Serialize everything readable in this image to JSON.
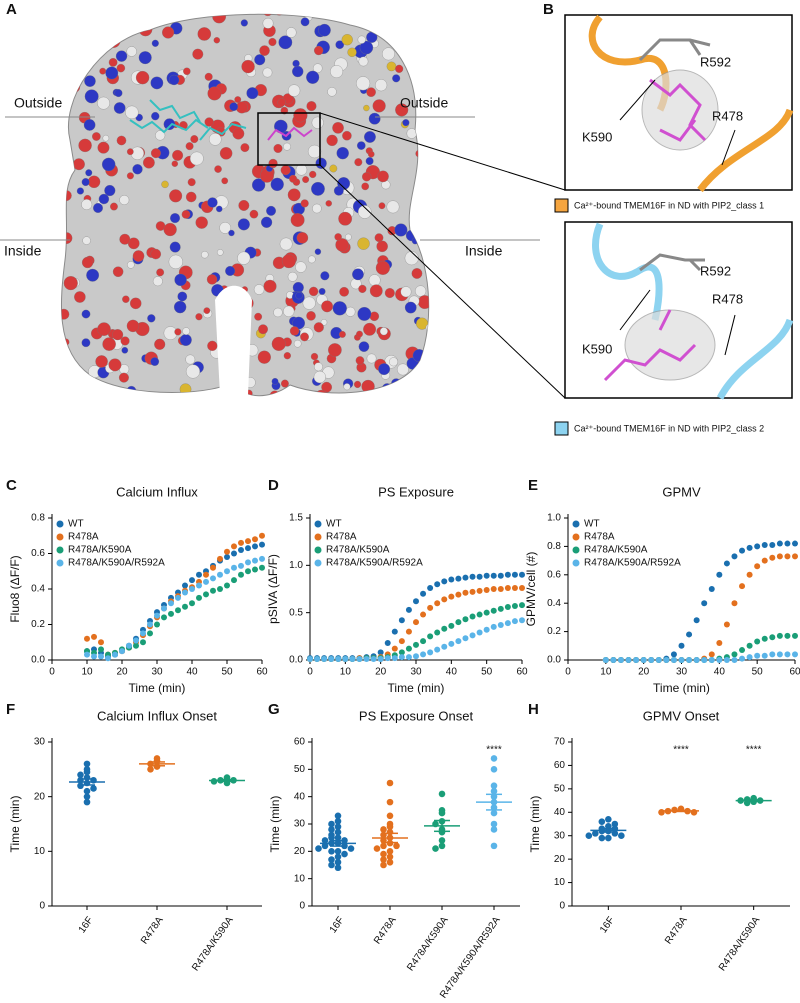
{
  "panel_labels": [
    "A",
    "B",
    "C",
    "D",
    "E",
    "F",
    "G",
    "H"
  ],
  "structure": {
    "outside_labels": [
      "Outside",
      "Outside"
    ],
    "inside_labels": [
      "Inside",
      "Inside"
    ]
  },
  "insets": [
    {
      "residues": [
        "R592",
        "K590",
        "R478"
      ],
      "caption": "Ca²⁺-bound TMEM16F in ND with PIP2_class 1"
    },
    {
      "residues": [
        "R592",
        "K590",
        "R478"
      ],
      "caption": "Ca²⁺-bound TMEM16F in ND with PIP2_class 2"
    }
  ],
  "chart_data": [
    {
      "type": "line",
      "title": "Calcium Influx",
      "xlabel": "Time (min)",
      "ylabel": "Fluo8 (ΔF/F)",
      "xlim": [
        0,
        60
      ],
      "xticks": [
        0,
        10,
        20,
        30,
        40,
        50,
        60
      ],
      "ylim": [
        0,
        0.8
      ],
      "yticks": [
        {
          "value": 0,
          "label": "0.0"
        },
        0.2,
        0.4,
        0.6,
        0.8
      ],
      "legend": "upper left",
      "x": [
        10,
        12,
        14,
        16,
        18,
        20,
        22,
        24,
        26,
        28,
        30,
        32,
        34,
        36,
        38,
        40,
        42,
        44,
        46,
        48,
        50,
        52,
        54,
        56,
        58,
        60
      ],
      "series": [
        {
          "name": "WT",
          "color": "#1a6faf",
          "values": [
            0.05,
            0.06,
            0.04,
            0.02,
            0.03,
            0.05,
            0.08,
            0.12,
            0.17,
            0.22,
            0.27,
            0.31,
            0.35,
            0.38,
            0.42,
            0.45,
            0.48,
            0.5,
            0.53,
            0.56,
            0.58,
            0.6,
            0.62,
            0.63,
            0.64,
            0.65
          ]
        },
        {
          "name": "R478A",
          "color": "#e3701e",
          "values": [
            0.12,
            0.13,
            0.1,
            0.03,
            0.04,
            0.05,
            0.07,
            0.1,
            0.14,
            0.19,
            0.24,
            0.29,
            0.33,
            0.36,
            0.39,
            0.41,
            0.44,
            0.48,
            0.52,
            0.57,
            0.61,
            0.64,
            0.66,
            0.67,
            0.68,
            0.7
          ]
        },
        {
          "name": "R478A/K590A",
          "color": "#1a9e77",
          "values": [
            0.05,
            0.04,
            0.06,
            0.03,
            0.04,
            0.06,
            0.07,
            0.08,
            0.1,
            0.15,
            0.2,
            0.24,
            0.26,
            0.28,
            0.3,
            0.32,
            0.35,
            0.37,
            0.39,
            0.4,
            0.42,
            0.45,
            0.48,
            0.5,
            0.51,
            0.52
          ]
        },
        {
          "name": "R478A/K590A/R592A",
          "color": "#5ab4e8",
          "values": [
            0.03,
            0.02,
            0.02,
            0.01,
            0.03,
            0.05,
            0.08,
            0.11,
            0.15,
            0.2,
            0.25,
            0.29,
            0.32,
            0.35,
            0.38,
            0.4,
            0.42,
            0.44,
            0.46,
            0.48,
            0.5,
            0.52,
            0.53,
            0.55,
            0.56,
            0.57
          ]
        }
      ]
    },
    {
      "type": "line",
      "title": "PS Exposure",
      "xlabel": "Time (min)",
      "ylabel": "pSIVA (ΔF/F)",
      "xlim": [
        0,
        60
      ],
      "xticks": [
        0,
        10,
        20,
        30,
        40,
        50,
        60
      ],
      "ylim": [
        0,
        1.5
      ],
      "yticks": [
        {
          "value": 0,
          "label": "0.0"
        },
        0.5,
        {
          "value": 1,
          "label": "1.0"
        },
        1.5
      ],
      "legend": "upper left",
      "x": [
        0,
        2,
        4,
        6,
        8,
        10,
        12,
        14,
        16,
        18,
        20,
        22,
        24,
        26,
        28,
        30,
        32,
        34,
        36,
        38,
        40,
        42,
        44,
        46,
        48,
        50,
        52,
        54,
        56,
        58,
        60
      ],
      "series": [
        {
          "name": "WT",
          "color": "#1a6faf",
          "values": [
            0.02,
            0.02,
            0.02,
            0.02,
            0.02,
            0.02,
            0.02,
            0.02,
            0.03,
            0.04,
            0.08,
            0.18,
            0.3,
            0.42,
            0.53,
            0.62,
            0.7,
            0.76,
            0.8,
            0.83,
            0.85,
            0.86,
            0.87,
            0.88,
            0.88,
            0.89,
            0.89,
            0.89,
            0.9,
            0.9,
            0.9
          ]
        },
        {
          "name": "R478A",
          "color": "#e3701e",
          "values": [
            0.01,
            0.01,
            0.01,
            0.01,
            0.01,
            0.01,
            0.01,
            0.02,
            0.02,
            0.02,
            0.03,
            0.06,
            0.12,
            0.2,
            0.3,
            0.4,
            0.48,
            0.55,
            0.6,
            0.64,
            0.67,
            0.69,
            0.71,
            0.72,
            0.73,
            0.74,
            0.75,
            0.75,
            0.76,
            0.76,
            0.76
          ]
        },
        {
          "name": "R478A/K590A",
          "color": "#1a9e77",
          "values": [
            0.01,
            0.01,
            0.01,
            0.01,
            0.01,
            0.01,
            0.01,
            0.01,
            0.02,
            0.02,
            0.02,
            0.03,
            0.05,
            0.08,
            0.12,
            0.16,
            0.2,
            0.25,
            0.29,
            0.33,
            0.36,
            0.4,
            0.43,
            0.46,
            0.48,
            0.5,
            0.52,
            0.54,
            0.56,
            0.57,
            0.58
          ]
        },
        {
          "name": "R478A/K590A/R592A",
          "color": "#5ab4e8",
          "values": [
            0.01,
            0.01,
            0.01,
            0.01,
            0.01,
            0.01,
            0.01,
            0.01,
            0.01,
            0.01,
            0.01,
            0.02,
            0.02,
            0.03,
            0.03,
            0.04,
            0.06,
            0.08,
            0.11,
            0.14,
            0.17,
            0.2,
            0.23,
            0.26,
            0.29,
            0.32,
            0.35,
            0.37,
            0.39,
            0.41,
            0.42
          ]
        }
      ]
    },
    {
      "type": "line",
      "title": "GPMV",
      "xlabel": "Time (min)",
      "ylabel": "GPMV/cell (#)",
      "xlim": [
        0,
        60
      ],
      "xticks": [
        0,
        10,
        20,
        30,
        40,
        50,
        60
      ],
      "ylim": [
        0,
        1
      ],
      "yticks": [
        {
          "value": 0,
          "label": "0.0"
        },
        0.2,
        0.4,
        0.6,
        0.8,
        {
          "value": 1,
          "label": "1.0"
        }
      ],
      "legend": "upper left",
      "x": [
        10,
        12,
        14,
        16,
        18,
        20,
        22,
        24,
        26,
        28,
        30,
        32,
        34,
        36,
        38,
        40,
        42,
        44,
        46,
        48,
        50,
        52,
        54,
        56,
        58,
        60
      ],
      "series": [
        {
          "name": "WT",
          "color": "#1a6faf",
          "values": [
            0,
            0,
            0,
            0,
            0,
            0,
            0,
            0,
            0.01,
            0.04,
            0.1,
            0.18,
            0.28,
            0.4,
            0.5,
            0.6,
            0.68,
            0.73,
            0.77,
            0.79,
            0.8,
            0.81,
            0.81,
            0.82,
            0.82,
            0.82
          ]
        },
        {
          "name": "R478A",
          "color": "#e3701e",
          "values": [
            0,
            0,
            0,
            0,
            0,
            0,
            0,
            0,
            0,
            0,
            0,
            0,
            0,
            0.01,
            0.04,
            0.12,
            0.25,
            0.4,
            0.52,
            0.6,
            0.66,
            0.7,
            0.72,
            0.73,
            0.73,
            0.73
          ]
        },
        {
          "name": "R478A/K590A",
          "color": "#1a9e77",
          "values": [
            0,
            0,
            0,
            0,
            0,
            0,
            0,
            0,
            0,
            0,
            0,
            0,
            0,
            0,
            0,
            0.01,
            0.02,
            0.04,
            0.07,
            0.1,
            0.13,
            0.15,
            0.16,
            0.17,
            0.17,
            0.17
          ]
        },
        {
          "name": "R478A/K590A/R592A",
          "color": "#5ab4e8",
          "values": [
            0,
            0,
            0,
            0,
            0,
            0,
            0,
            0,
            0,
            0,
            0,
            0,
            0,
            0,
            0,
            0,
            0,
            0,
            0.01,
            0.02,
            0.03,
            0.03,
            0.04,
            0.04,
            0.04,
            0.04
          ]
        }
      ]
    },
    {
      "type": "strip",
      "title": "Calcium Influx Onset",
      "ylabel": "Time (min)",
      "ylim": [
        0,
        30
      ],
      "yticks": [
        0,
        10,
        20,
        30
      ],
      "categories": [
        "16F",
        "R478A",
        "R478A/K590A"
      ],
      "colors": [
        "#1a6faf",
        "#e3701e",
        "#1a9e77"
      ],
      "values": [
        [
          26,
          25,
          24.5,
          24,
          23.5,
          23,
          23,
          22.5,
          22,
          21.5,
          21,
          20,
          19
        ],
        [
          27,
          26.5,
          26,
          25.5,
          25
        ],
        [
          23.5,
          23,
          23,
          22.8,
          22.5
        ]
      ]
    },
    {
      "type": "strip",
      "title": "PS Exposure Onset",
      "ylabel": "Time (min)",
      "ylim": [
        0,
        60
      ],
      "yticks": [
        0,
        10,
        20,
        30,
        40,
        50,
        60
      ],
      "categories": [
        "16F",
        "R478A",
        "R478A/K590A",
        "R478A/K590A/R592A"
      ],
      "colors": [
        "#1a6faf",
        "#e3701e",
        "#1a9e77",
        "#5ab4e8"
      ],
      "annotations": [
        null,
        null,
        null,
        "****"
      ],
      "values": [
        [
          33,
          31,
          30,
          29,
          28,
          27,
          26,
          25,
          25,
          24,
          24,
          23,
          23,
          22,
          22,
          21,
          21,
          20,
          20,
          19,
          18,
          17,
          16,
          15,
          14
        ],
        [
          45,
          38,
          33,
          30,
          29,
          28,
          27,
          26,
          25,
          24,
          23,
          22,
          22,
          21,
          20,
          19,
          18,
          17,
          16,
          15
        ],
        [
          41,
          35,
          34,
          31,
          30,
          28,
          27,
          24,
          22,
          21
        ],
        [
          54,
          50,
          44,
          42,
          40,
          38,
          36,
          34,
          30,
          28,
          22
        ]
      ]
    },
    {
      "type": "strip",
      "title": "GPMV Onset",
      "ylabel": "Time (min)",
      "ylim": [
        0,
        70
      ],
      "yticks": [
        0,
        10,
        20,
        30,
        40,
        50,
        60,
        70
      ],
      "categories": [
        "16F",
        "R478A",
        "R478A/K590A"
      ],
      "colors": [
        "#1a6faf",
        "#e3701e",
        "#1a9e77"
      ],
      "annotations": [
        null,
        "****",
        "****"
      ],
      "values": [
        [
          37,
          36,
          35,
          34,
          33,
          33,
          32,
          32,
          31,
          31,
          30,
          30,
          29,
          29
        ],
        [
          41.5,
          41,
          40.5,
          40.5,
          40,
          40
        ],
        [
          46,
          45.5,
          45,
          45,
          44.5,
          44
        ]
      ]
    }
  ]
}
